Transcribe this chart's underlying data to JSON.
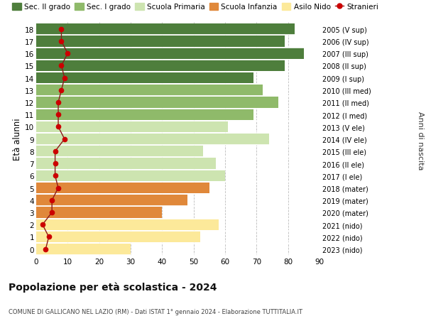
{
  "ages": [
    0,
    1,
    2,
    3,
    4,
    5,
    6,
    7,
    8,
    9,
    10,
    11,
    12,
    13,
    14,
    15,
    16,
    17,
    18
  ],
  "right_labels": [
    "2023 (nido)",
    "2022 (nido)",
    "2021 (nido)",
    "2020 (mater)",
    "2019 (mater)",
    "2018 (mater)",
    "2017 (I ele)",
    "2016 (II ele)",
    "2015 (III ele)",
    "2014 (IV ele)",
    "2013 (V ele)",
    "2012 (I med)",
    "2011 (II med)",
    "2010 (III med)",
    "2009 (I sup)",
    "2008 (II sup)",
    "2007 (III sup)",
    "2006 (IV sup)",
    "2005 (V sup)"
  ],
  "bar_values": [
    30,
    52,
    58,
    40,
    48,
    55,
    60,
    57,
    53,
    74,
    61,
    69,
    77,
    72,
    69,
    79,
    85,
    79,
    82
  ],
  "bar_colors": [
    "#fce99a",
    "#fce99a",
    "#fce99a",
    "#e0883a",
    "#e0883a",
    "#e0883a",
    "#cde4b0",
    "#cde4b0",
    "#cde4b0",
    "#cde4b0",
    "#cde4b0",
    "#8fba6a",
    "#8fba6a",
    "#8fba6a",
    "#4e7e3c",
    "#4e7e3c",
    "#4e7e3c",
    "#4e7e3c",
    "#4e7e3c"
  ],
  "stranieri_values": [
    3,
    4,
    2,
    5,
    5,
    7,
    6,
    6,
    6,
    9,
    7,
    7,
    7,
    8,
    9,
    8,
    10,
    8,
    8
  ],
  "xlim": [
    0,
    90
  ],
  "ylabel": "Età alunni",
  "right_ylabel": "Anni di nascita",
  "title": "Popolazione per età scolastica - 2024",
  "subtitle": "COMUNE DI GALLICANO NEL LAZIO (RM) - Dati ISTAT 1° gennaio 2024 - Elaborazione TUTTITALIA.IT",
  "legend_labels": [
    "Sec. II grado",
    "Sec. I grado",
    "Scuola Primaria",
    "Scuola Infanzia",
    "Asilo Nido",
    "Stranieri"
  ],
  "legend_colors": [
    "#4e7e3c",
    "#8fba6a",
    "#cde4b0",
    "#e0883a",
    "#fce99a",
    "#cc0000"
  ],
  "bg_color": "#ffffff",
  "bar_height": 0.92,
  "xticks": [
    0,
    10,
    20,
    30,
    40,
    50,
    60,
    70,
    80,
    90
  ]
}
